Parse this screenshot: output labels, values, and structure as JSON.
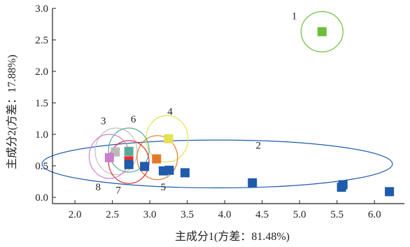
{
  "chart_data": {
    "type": "scatter",
    "title": "",
    "xlabel": "主成分1(方差：81.48%)",
    "ylabel": "主成分2(方差：17.88%)",
    "xlim": [
      1.7,
      6.4
    ],
    "ylim": [
      -0.1,
      3.0
    ],
    "grid": false,
    "x_ticks": [
      "2.0",
      "2.5",
      "3.0",
      "3.5",
      "4.0",
      "4.5",
      "5.0",
      "5.5",
      "6.0"
    ],
    "y_ticks": [
      "0.0",
      "0.5",
      "1.0",
      "1.5",
      "2.0",
      "2.5",
      "3.0"
    ],
    "points": [
      {
        "x": 5.3,
        "y": 2.63,
        "color": "#6cbf3c"
      },
      {
        "x": 3.25,
        "y": 0.93,
        "color": "#e6e050"
      },
      {
        "x": 2.54,
        "y": 0.72,
        "color": "#bbbbbb"
      },
      {
        "x": 2.72,
        "y": 0.73,
        "color": "#5aa89a"
      },
      {
        "x": 2.46,
        "y": 0.63,
        "color": "#cc7fcc"
      },
      {
        "x": 2.72,
        "y": 0.58,
        "color": "#e03030"
      },
      {
        "x": 3.09,
        "y": 0.61,
        "color": "#e07a2a"
      },
      {
        "x": 2.72,
        "y": 0.52,
        "color": "#1f5aab"
      },
      {
        "x": 2.93,
        "y": 0.49,
        "color": "#1f5aab"
      },
      {
        "x": 3.18,
        "y": 0.42,
        "color": "#1f5aab"
      },
      {
        "x": 3.26,
        "y": 0.43,
        "color": "#1f5aab"
      },
      {
        "x": 3.47,
        "y": 0.39,
        "color": "#1f5aab"
      },
      {
        "x": 4.37,
        "y": 0.23,
        "color": "#1f5aab"
      },
      {
        "x": 5.56,
        "y": 0.16,
        "color": "#1f5aab"
      },
      {
        "x": 5.58,
        "y": 0.2,
        "color": "#1f5aab"
      },
      {
        "x": 6.2,
        "y": 0.09,
        "color": "#1f5aab"
      }
    ],
    "groups": [
      {
        "label": "1",
        "cx": 5.3,
        "cy": 2.63,
        "rx": 0.28,
        "ry": 0.32,
        "color": "#6cbf3c"
      },
      {
        "label": "2",
        "cx": 3.9,
        "cy": 0.53,
        "rx": 2.34,
        "ry": 0.38,
        "color": "#1f5aab"
      },
      {
        "label": "3",
        "cx": 2.55,
        "cy": 0.73,
        "rx": 0.28,
        "ry": 0.37,
        "color": "#c0c0c0"
      },
      {
        "label": "4",
        "cx": 3.23,
        "cy": 0.93,
        "rx": 0.28,
        "ry": 0.37,
        "color": "#e6e050"
      },
      {
        "label": "5",
        "cx": 3.1,
        "cy": 0.63,
        "rx": 0.27,
        "ry": 0.35,
        "color": "#e07a2a"
      },
      {
        "label": "6",
        "cx": 2.72,
        "cy": 0.75,
        "rx": 0.27,
        "ry": 0.35,
        "color": "#5aa89a"
      },
      {
        "label": "7",
        "cx": 2.72,
        "cy": 0.56,
        "rx": 0.27,
        "ry": 0.34,
        "color": "#e03030"
      },
      {
        "label": "8",
        "cx": 2.46,
        "cy": 0.65,
        "rx": 0.27,
        "ry": 0.35,
        "color": "#cc7fcc"
      }
    ],
    "group_labels": [
      {
        "text": "1",
        "x": 4.93,
        "y": 2.83
      },
      {
        "text": "2",
        "x": 4.45,
        "y": 0.77
      },
      {
        "text": "3",
        "x": 2.38,
        "y": 1.16
      },
      {
        "text": "4",
        "x": 3.27,
        "y": 1.31
      },
      {
        "text": "5",
        "x": 3.18,
        "y": 0.11
      },
      {
        "text": "6",
        "x": 2.78,
        "y": 1.19
      },
      {
        "text": "7",
        "x": 2.58,
        "y": 0.06
      },
      {
        "text": "8",
        "x": 2.31,
        "y": 0.11
      }
    ]
  }
}
